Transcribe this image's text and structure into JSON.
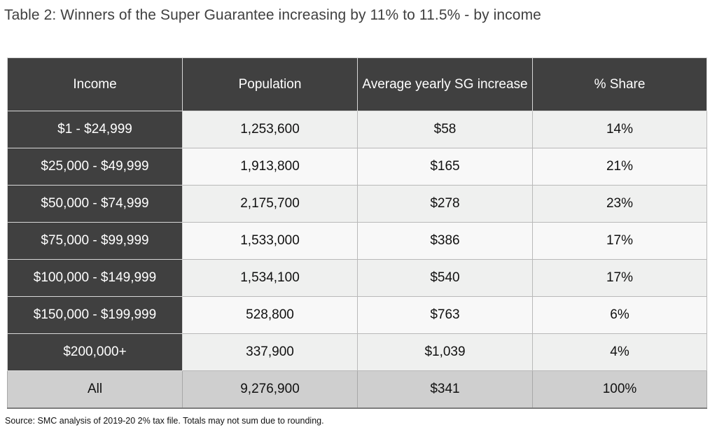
{
  "title": "Table 2: Winners of the Super Guarantee increasing by 11% to 11.5% - by income",
  "chart_data": {
    "type": "table",
    "columns": [
      "Income",
      "Population",
      "Average yearly SG increase",
      "% Share"
    ],
    "rows": [
      [
        "$1 - $24,999",
        "1,253,600",
        "$58",
        "14%"
      ],
      [
        "$25,000 - $49,999",
        "1,913,800",
        "$165",
        "21%"
      ],
      [
        "$50,000 - $74,999",
        "2,175,700",
        "$278",
        "23%"
      ],
      [
        "$75,000 - $99,999",
        "1,533,000",
        "$386",
        "17%"
      ],
      [
        "$100,000 - $149,999",
        "1,534,100",
        "$540",
        "17%"
      ],
      [
        "$150,000 - $199,999",
        "528,800",
        "$763",
        "6%"
      ],
      [
        "$200,000+",
        "337,900",
        "$1,039",
        "4%"
      ]
    ],
    "total": [
      "All",
      "9,276,900",
      "$341",
      "100%"
    ]
  },
  "source": "Source: SMC analysis of 2019-20 2% tax file. Totals may not sum due to rounding.",
  "colors": {
    "header_bg": "#404040",
    "header_text": "#ffffff",
    "row_odd": "#eff0ef",
    "row_even": "#f8f8f8",
    "total_bg": "#cfcfcf"
  }
}
